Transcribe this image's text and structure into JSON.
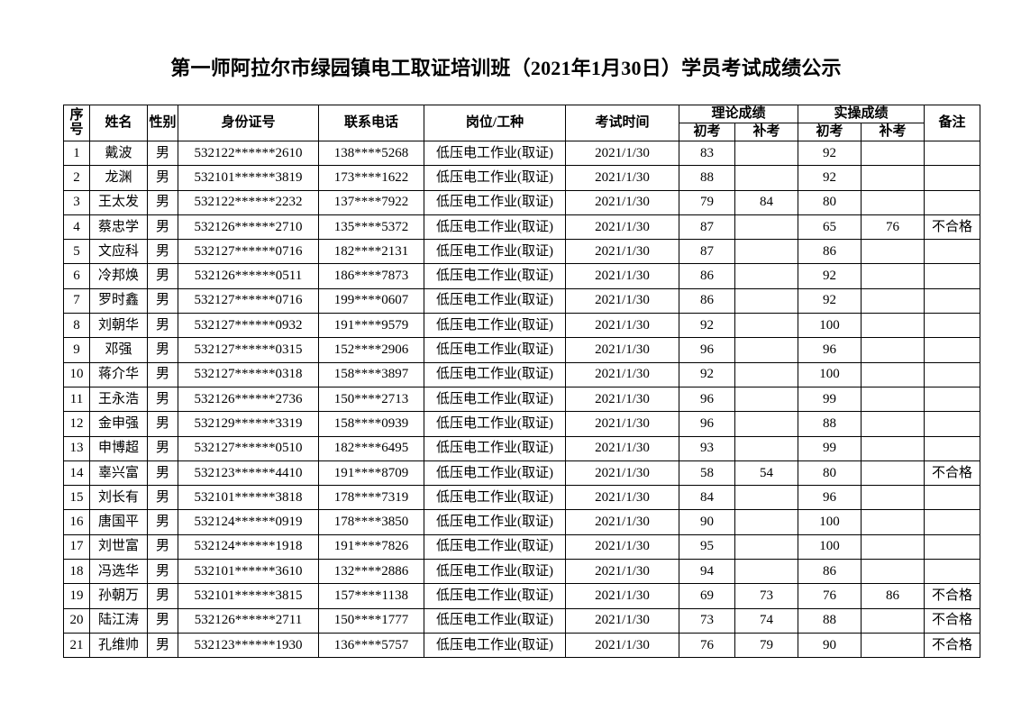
{
  "title": "第一师阿拉尔市绿园镇电工取证培训班（2021年1月30日）学员考试成绩公示",
  "headers": {
    "seq": "序号",
    "name": "姓名",
    "gender": "性别",
    "id": "身份证号",
    "phone": "联系电话",
    "job": "岗位/工种",
    "date": "考试时间",
    "theory": "理论成绩",
    "practice": "实操成绩",
    "first": "初考",
    "retake": "补考",
    "note": "备注"
  },
  "rows": [
    [
      "1",
      "戴波",
      "男",
      "532122******2610",
      "138****5268",
      "低压电工作业(取证)",
      "2021/1/30",
      "83",
      "",
      "92",
      "",
      ""
    ],
    [
      "2",
      "龙渊",
      "男",
      "532101******3819",
      "173****1622",
      "低压电工作业(取证)",
      "2021/1/30",
      "88",
      "",
      "92",
      "",
      ""
    ],
    [
      "3",
      "王太发",
      "男",
      "532122******2232",
      "137****7922",
      "低压电工作业(取证)",
      "2021/1/30",
      "79",
      "84",
      "80",
      "",
      ""
    ],
    [
      "4",
      "蔡忠学",
      "男",
      "532126******2710",
      "135****5372",
      "低压电工作业(取证)",
      "2021/1/30",
      "87",
      "",
      "65",
      "76",
      "不合格"
    ],
    [
      "5",
      "文应科",
      "男",
      "532127******0716",
      "182****2131",
      "低压电工作业(取证)",
      "2021/1/30",
      "87",
      "",
      "86",
      "",
      ""
    ],
    [
      "6",
      "冷邦焕",
      "男",
      "532126******0511",
      "186****7873",
      "低压电工作业(取证)",
      "2021/1/30",
      "86",
      "",
      "92",
      "",
      ""
    ],
    [
      "7",
      "罗时鑫",
      "男",
      "532127******0716",
      "199****0607",
      "低压电工作业(取证)",
      "2021/1/30",
      "86",
      "",
      "92",
      "",
      ""
    ],
    [
      "8",
      "刘朝华",
      "男",
      "532127******0932",
      "191****9579",
      "低压电工作业(取证)",
      "2021/1/30",
      "92",
      "",
      "100",
      "",
      ""
    ],
    [
      "9",
      "邓强",
      "男",
      "532127******0315",
      "152****2906",
      "低压电工作业(取证)",
      "2021/1/30",
      "96",
      "",
      "96",
      "",
      ""
    ],
    [
      "10",
      "蒋介华",
      "男",
      "532127******0318",
      "158****3897",
      "低压电工作业(取证)",
      "2021/1/30",
      "92",
      "",
      "100",
      "",
      ""
    ],
    [
      "11",
      "王永浩",
      "男",
      "532126******2736",
      "150****2713",
      "低压电工作业(取证)",
      "2021/1/30",
      "96",
      "",
      "99",
      "",
      ""
    ],
    [
      "12",
      "金申强",
      "男",
      "532129******3319",
      "158****0939",
      "低压电工作业(取证)",
      "2021/1/30",
      "96",
      "",
      "88",
      "",
      ""
    ],
    [
      "13",
      "申博超",
      "男",
      "532127******0510",
      "182****6495",
      "低压电工作业(取证)",
      "2021/1/30",
      "93",
      "",
      "99",
      "",
      ""
    ],
    [
      "14",
      "辜兴富",
      "男",
      "532123******4410",
      "191****8709",
      "低压电工作业(取证)",
      "2021/1/30",
      "58",
      "54",
      "80",
      "",
      "不合格"
    ],
    [
      "15",
      "刘长有",
      "男",
      "532101******3818",
      "178****7319",
      "低压电工作业(取证)",
      "2021/1/30",
      "84",
      "",
      "96",
      "",
      ""
    ],
    [
      "16",
      "唐国平",
      "男",
      "532124******0919",
      "178****3850",
      "低压电工作业(取证)",
      "2021/1/30",
      "90",
      "",
      "100",
      "",
      ""
    ],
    [
      "17",
      "刘世富",
      "男",
      "532124******1918",
      "191****7826",
      "低压电工作业(取证)",
      "2021/1/30",
      "95",
      "",
      "100",
      "",
      ""
    ],
    [
      "18",
      "冯选华",
      "男",
      "532101******3610",
      "132****2886",
      "低压电工作业(取证)",
      "2021/1/30",
      "94",
      "",
      "86",
      "",
      ""
    ],
    [
      "19",
      "孙朝万",
      "男",
      "532101******3815",
      "157****1138",
      "低压电工作业(取证)",
      "2021/1/30",
      "69",
      "73",
      "76",
      "86",
      "不合格"
    ],
    [
      "20",
      "陆江涛",
      "男",
      "532126******2711",
      "150****1777",
      "低压电工作业(取证)",
      "2021/1/30",
      "73",
      "74",
      "88",
      "",
      "不合格"
    ],
    [
      "21",
      "孔维帅",
      "男",
      "532123******1930",
      "136****5757",
      "低压电工作业(取证)",
      "2021/1/30",
      "76",
      "79",
      "90",
      "",
      "不合格"
    ]
  ]
}
